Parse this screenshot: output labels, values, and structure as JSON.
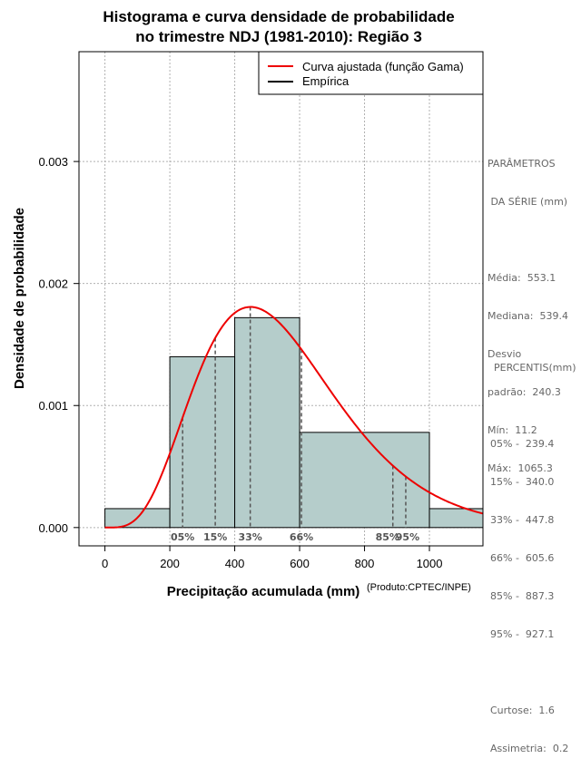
{
  "chart_data": {
    "type": "bar",
    "title_line1": "Histograma e curva densidade de probabilidade",
    "title_line2": "no trimestre NDJ (1981-2010): Região 3",
    "xlabel": "Precipitação acumulada (mm)",
    "ylabel": "Densidade de probabilidade",
    "credit": "(Produto:CPTEC/INPE)",
    "xlim": [
      -80,
      1165
    ],
    "ylim": [
      -0.00015,
      0.0039
    ],
    "x_ticks": [
      0,
      200,
      400,
      600,
      800,
      1000
    ],
    "x_tick_labels": [
      "0",
      "200",
      "400",
      "600",
      "800",
      "1000"
    ],
    "y_ticks": [
      0.0,
      0.001,
      0.002,
      0.003
    ],
    "y_tick_labels": [
      "0.000",
      "0.001",
      "0.002",
      "0.003"
    ],
    "bins": [
      {
        "start": 0,
        "end": 200,
        "density": 0.000155
      },
      {
        "start": 200,
        "end": 400,
        "density": 0.0014
      },
      {
        "start": 400,
        "end": 600,
        "density": 0.00172
      },
      {
        "start": 600,
        "end": 1000,
        "density": 0.00078
      },
      {
        "start": 1000,
        "end": 1200,
        "density": 0.000155
      }
    ],
    "gamma_fit": {
      "mean": 553.1,
      "sd": 240.3
    },
    "percentiles": [
      {
        "label": "05%",
        "value": 239.4
      },
      {
        "label": "15%",
        "value": 340.0
      },
      {
        "label": "33%",
        "value": 447.8
      },
      {
        "label": "66%",
        "value": 605.6
      },
      {
        "label": "85%",
        "value": 887.3
      },
      {
        "label": "95%",
        "value": 927.1
      }
    ],
    "legend": [
      {
        "label": "Curva ajustada (função Gama)",
        "color": "#ee0000"
      },
      {
        "label": "Empírica",
        "color": "#000000"
      }
    ],
    "colors": {
      "bar_fill": "#b5cdcb",
      "curve": "#ee0000",
      "grid": "#b0b0b0"
    }
  },
  "params_panel": {
    "heading_line1": "PARÂMETROS",
    "heading_line2": " DA SÉRIE (mm)",
    "mean": "Média:  553.1",
    "median": "Mediana:  539.4",
    "sd_line1": "Desvio",
    "sd_line2": "padrão:  240.3",
    "min": "Mín:  11.2",
    "max": "Máx:  1065.3"
  },
  "percentis_panel": {
    "heading": "PERCENTIS(mm)",
    "rows": [
      "05% -  239.4",
      "15% -  340.0",
      "33% -  447.8",
      "66% -  605.6",
      "85% -  887.3",
      "95% -  927.1"
    ],
    "kurtosis": "Curtose:  1.6",
    "skewness": "Assimetria:  0.2"
  }
}
